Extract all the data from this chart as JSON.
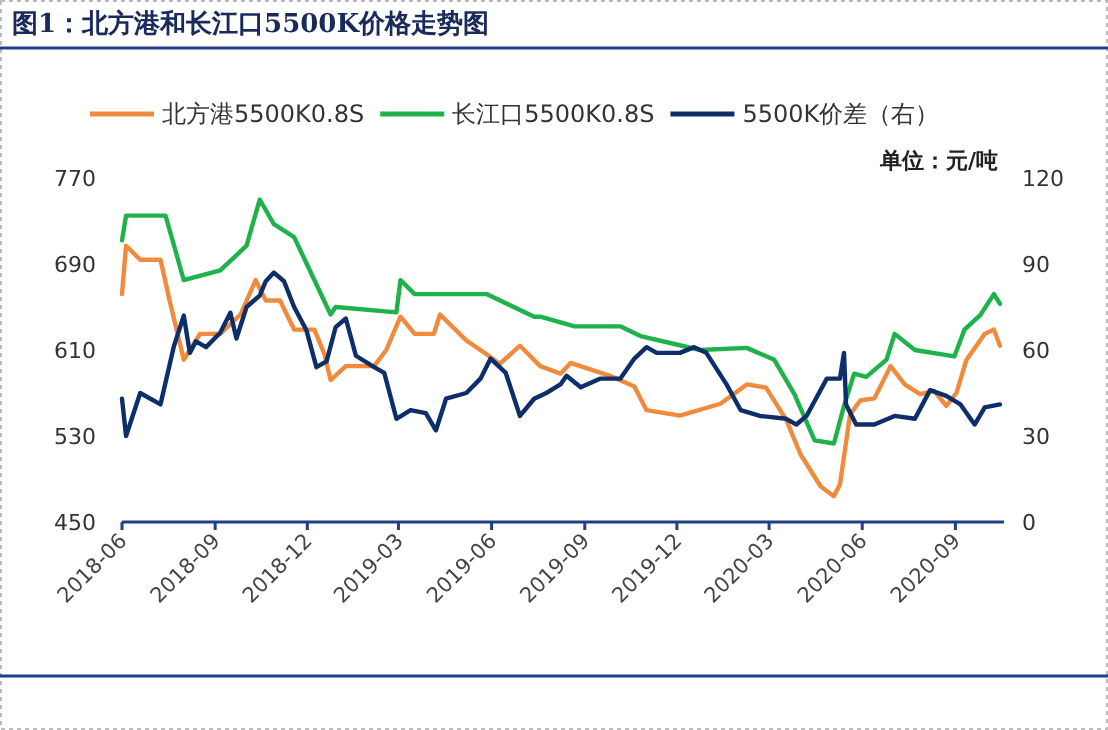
{
  "chart_data": {
    "type": "line",
    "title": "图1：北方港和长江口5500K价格走势图",
    "xlim": [
      "2018-06-01",
      "2020-10-19"
    ],
    "xticks": [
      "2018-06",
      "2018-09",
      "2018-12",
      "2019-03",
      "2019-06",
      "2019-09",
      "2019-12",
      "2020-03",
      "2020-06",
      "2020-09"
    ],
    "ylim": [
      450,
      770
    ],
    "yticks": [
      450,
      530,
      610,
      690,
      770
    ],
    "y2lim": [
      0,
      120
    ],
    "y2ticks": [
      0,
      30,
      60,
      90,
      120
    ],
    "legend": "top",
    "grid": false,
    "annotations": [
      "单位：元/吨"
    ],
    "series": [
      {
        "name": "北方港5500K0.8S",
        "color": "#f08a3c",
        "x": [
          "2018-06-01",
          "2018-06-05",
          "2018-06-19",
          "2018-07-09",
          "2018-07-18",
          "2018-08-01",
          "2018-08-17",
          "2018-09-06",
          "2018-09-26",
          "2018-10-11",
          "2018-10-21",
          "2018-11-04",
          "2018-11-18",
          "2018-12-08",
          "2018-12-18",
          "2018-12-24",
          "2019-01-08",
          "2019-02-05",
          "2019-02-17",
          "2019-03-03",
          "2019-03-17",
          "2019-04-05",
          "2019-04-11",
          "2019-05-07",
          "2019-05-27",
          "2019-06-09",
          "2019-06-29",
          "2019-07-19",
          "2019-08-08",
          "2019-08-18",
          "2019-09-26",
          "2019-10-20",
          "2019-11-01",
          "2019-12-04",
          "2020-01-13",
          "2020-02-08",
          "2020-02-27",
          "2020-03-18",
          "2020-04-01",
          "2020-04-21",
          "2020-05-04",
          "2020-05-10",
          "2020-05-20",
          "2020-05-30",
          "2020-06-13",
          "2020-06-29",
          "2020-07-13",
          "2020-07-28",
          "2020-08-11",
          "2020-08-23",
          "2020-09-02",
          "2020-09-12",
          "2020-09-30",
          "2020-10-09",
          "2020-10-15"
        ],
        "values": [
          662,
          707,
          694,
          694,
          656,
          601,
          625,
          625,
          643,
          675,
          656,
          656,
          629,
          629,
          606,
          582,
          595,
          595,
          610,
          641,
          625,
          625,
          643,
          619,
          606,
          597,
          614,
          595,
          588,
          598,
          586,
          576,
          554,
          549,
          560,
          578,
          575,
          545,
          513,
          483,
          474,
          485,
          550,
          563,
          565,
          595,
          578,
          569,
          572,
          558,
          570,
          601,
          625,
          629,
          614
        ]
      },
      {
        "name": "长江口5500K0.8S",
        "color": "#1fb24a",
        "x": [
          "2018-06-01",
          "2018-06-05",
          "2018-07-14",
          "2018-08-01",
          "2018-09-06",
          "2018-10-02",
          "2018-10-15",
          "2018-10-29",
          "2018-11-18",
          "2018-12-24",
          "2018-12-29",
          "2019-02-27",
          "2019-03-03",
          "2019-03-17",
          "2019-05-07",
          "2019-05-27",
          "2019-07-13",
          "2019-07-19",
          "2019-08-22",
          "2019-10-06",
          "2019-10-26",
          "2019-12-24",
          "2020-02-08",
          "2020-03-06",
          "2020-03-26",
          "2020-04-15",
          "2020-05-04",
          "2020-05-14",
          "2020-05-24",
          "2020-06-05",
          "2020-06-25",
          "2020-07-03",
          "2020-07-23",
          "2020-08-31",
          "2020-09-10",
          "2020-09-26",
          "2020-10-09",
          "2020-10-15"
        ],
        "values": [
          712,
          735,
          735,
          675,
          684,
          707,
          750,
          727,
          715,
          643,
          650,
          645,
          675,
          662,
          662,
          662,
          641,
          641,
          632,
          632,
          623,
          610,
          612,
          601,
          569,
          526,
          523,
          558,
          588,
          585,
          601,
          625,
          610,
          604,
          629,
          643,
          662,
          653
        ]
      },
      {
        "name": "5500K价差（右）",
        "color": "#0d2d6b",
        "axis": "y2",
        "x": [
          "2018-06-01",
          "2018-06-05",
          "2018-06-19",
          "2018-07-09",
          "2018-07-22",
          "2018-08-01",
          "2018-08-07",
          "2018-08-13",
          "2018-08-23",
          "2018-09-06",
          "2018-09-16",
          "2018-09-22",
          "2018-10-02",
          "2018-10-15",
          "2018-10-21",
          "2018-10-29",
          "2018-11-08",
          "2018-11-18",
          "2018-11-30",
          "2018-12-10",
          "2018-12-20",
          "2018-12-29",
          "2019-01-08",
          "2019-01-18",
          "2019-02-05",
          "2019-02-15",
          "2019-02-27",
          "2019-03-13",
          "2019-03-28",
          "2019-04-07",
          "2019-04-17",
          "2019-05-07",
          "2019-05-21",
          "2019-05-31",
          "2019-06-15",
          "2019-06-29",
          "2019-07-13",
          "2019-07-25",
          "2019-08-08",
          "2019-08-14",
          "2019-08-28",
          "2019-09-16",
          "2019-10-06",
          "2019-10-20",
          "2019-11-01",
          "2019-11-11",
          "2019-12-04",
          "2019-12-18",
          "2019-12-30",
          "2020-01-19",
          "2020-02-02",
          "2020-02-21",
          "2020-03-18",
          "2020-03-28",
          "2020-04-07",
          "2020-04-27",
          "2020-05-10",
          "2020-05-14",
          "2020-05-16",
          "2020-05-26",
          "2020-06-13",
          "2020-07-03",
          "2020-07-23",
          "2020-08-07",
          "2020-08-23",
          "2020-09-06",
          "2020-09-20",
          "2020-09-30",
          "2020-10-15"
        ],
        "values": [
          43,
          30,
          45,
          41,
          61,
          72,
          59,
          63,
          61,
          66,
          73,
          64,
          75,
          79,
          84,
          87,
          84,
          75,
          67,
          54,
          56,
          68,
          71,
          58,
          54,
          52,
          36,
          39,
          38,
          32,
          43,
          45,
          50,
          57,
          52,
          37,
          43,
          45,
          48,
          51,
          47,
          50,
          50,
          57,
          61,
          59,
          59,
          61,
          59,
          48,
          39,
          37,
          36,
          34,
          37,
          50,
          50,
          59,
          41,
          34,
          34,
          37,
          36,
          46,
          44,
          41,
          34,
          40,
          41
        ]
      }
    ]
  }
}
